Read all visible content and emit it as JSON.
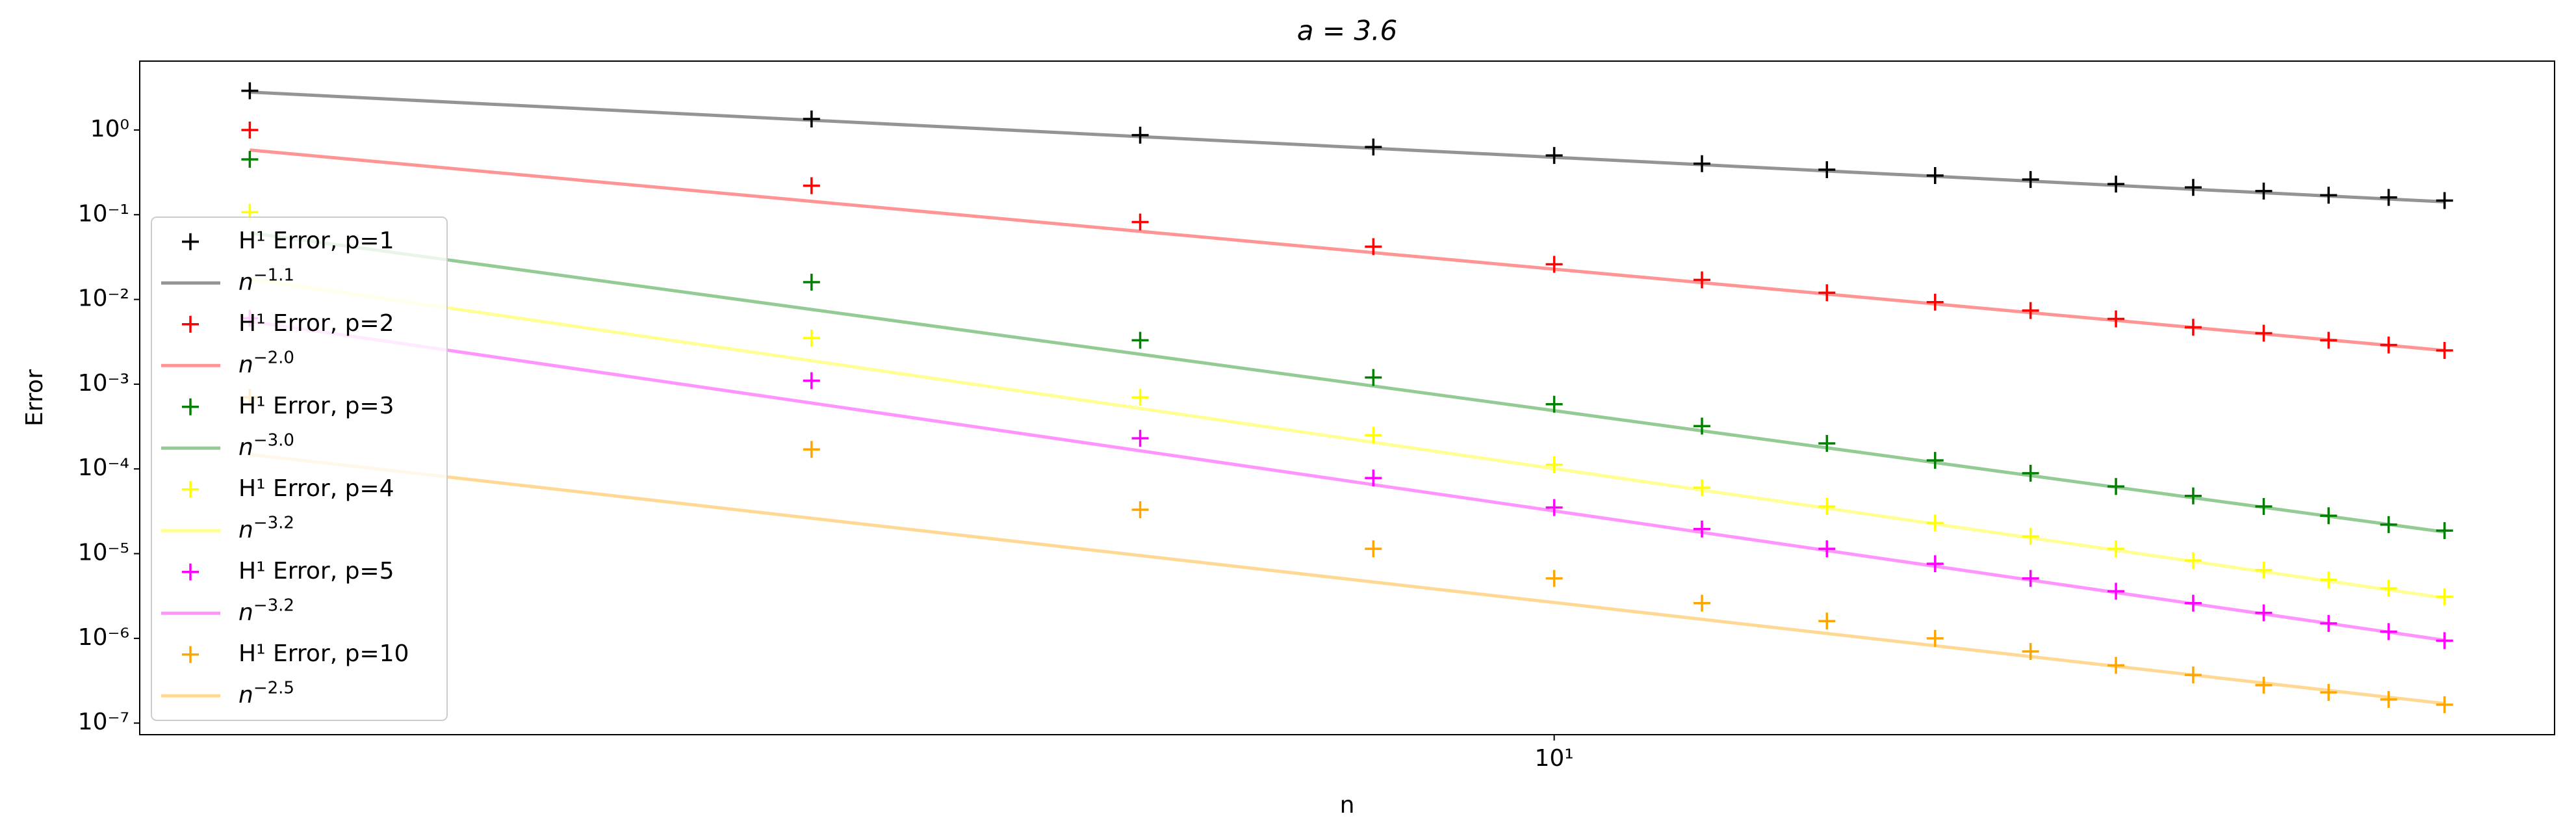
{
  "chart_data": {
    "type": "line",
    "title": "a = 3.6",
    "xlabel": "n",
    "ylabel": "Error",
    "xscale": "log",
    "yscale": "log",
    "xlim": [
      1.746,
      34.36
    ],
    "ylim": [
      7.3e-08,
      6.5
    ],
    "xticks": [
      {
        "value": 10,
        "label": "10¹"
      }
    ],
    "yticks": [
      {
        "value": 1,
        "label": "10⁰"
      },
      {
        "value": 0.1,
        "label": "10⁻¹"
      },
      {
        "value": 0.01,
        "label": "10⁻²"
      },
      {
        "value": 0.001,
        "label": "10⁻³"
      },
      {
        "value": 0.0001,
        "label": "10⁻⁴"
      },
      {
        "value": 1e-05,
        "label": "10⁻⁵"
      },
      {
        "value": 1e-06,
        "label": "10⁻⁶"
      },
      {
        "value": 1e-07,
        "label": "10⁻⁷"
      }
    ],
    "legend": "lower left",
    "series": [
      {
        "name": "H¹ Error, p=1",
        "style": "marker",
        "color": "#000000",
        "x": [
          2,
          4,
          6,
          8,
          10,
          12,
          14,
          16,
          18,
          20,
          22,
          24,
          26,
          28,
          30
        ],
        "values": [
          2.9,
          1.35,
          0.87,
          0.63,
          0.5,
          0.4,
          0.34,
          0.29,
          0.26,
          0.23,
          0.21,
          0.19,
          0.17,
          0.16,
          0.147
        ]
      },
      {
        "name": "n^−1.1",
        "style": "line",
        "color": "#000000",
        "x": [
          2,
          30
        ],
        "values": [
          2.8,
          0.142
        ]
      },
      {
        "name": "H¹ Error, p=2",
        "style": "marker",
        "color": "#ff0000",
        "x": [
          2,
          4,
          6,
          8,
          10,
          12,
          14,
          16,
          18,
          20,
          22,
          24,
          26,
          28,
          30
        ],
        "values": [
          1.0,
          0.22,
          0.082,
          0.042,
          0.026,
          0.017,
          0.012,
          0.0093,
          0.0074,
          0.0059,
          0.0047,
          0.004,
          0.0033,
          0.0029,
          0.0025
        ]
      },
      {
        "name": "n^−2.0",
        "style": "line",
        "color": "#ff0000",
        "x": [
          2,
          30
        ],
        "values": [
          0.58,
          0.0025
        ]
      },
      {
        "name": "H¹ Error, p=3",
        "style": "marker",
        "color": "#008000",
        "x": [
          2,
          4,
          6,
          8,
          10,
          12,
          14,
          16,
          18,
          20,
          22,
          24,
          26,
          28,
          30
        ],
        "values": [
          0.45,
          0.016,
          0.0033,
          0.0012,
          0.00058,
          0.00032,
          0.0002,
          0.000126,
          8.9e-05,
          6.2e-05,
          4.8e-05,
          3.6e-05,
          2.8e-05,
          2.2e-05,
          1.87e-05
        ]
      },
      {
        "name": "n^−3.0",
        "style": "line",
        "color": "#008000",
        "x": [
          2,
          30
        ],
        "values": [
          0.061,
          1.8e-05
        ]
      },
      {
        "name": "H¹ Error, p=4",
        "style": "marker",
        "color": "#ffff00",
        "x": [
          2,
          4,
          6,
          8,
          10,
          12,
          14,
          16,
          18,
          20,
          22,
          24,
          26,
          28,
          30
        ],
        "values": [
          0.107,
          0.0035,
          0.0007,
          0.00025,
          0.000112,
          6e-05,
          3.6e-05,
          2.3e-05,
          1.6e-05,
          1.14e-05,
          8.3e-06,
          6.4e-06,
          4.9e-06,
          3.9e-06,
          3.1e-06
        ]
      },
      {
        "name": "n^−3.2",
        "style": "line",
        "color": "#ffff00",
        "x": [
          2,
          30
        ],
        "values": [
          0.0174,
          3e-06
        ]
      },
      {
        "name": "H¹ Error, p=5",
        "style": "marker",
        "color": "#ff00ff",
        "x": [
          2,
          4,
          6,
          8,
          10,
          12,
          14,
          16,
          18,
          20,
          22,
          24,
          26,
          28,
          30
        ],
        "values": [
          0.006,
          0.0011,
          0.00023,
          7.8e-05,
          3.5e-05,
          1.95e-05,
          1.14e-05,
          7.6e-06,
          5.1e-06,
          3.6e-06,
          2.6e-06,
          2e-06,
          1.5e-06,
          1.2e-06,
          9.4e-07
        ]
      },
      {
        "name": "n^−3.2",
        "style": "line",
        "color": "#ff00ff",
        "x": [
          2,
          30
        ],
        "values": [
          0.0055,
          9.5e-07
        ]
      },
      {
        "name": "H¹ Error, p=10",
        "style": "marker",
        "color": "#ffa500",
        "x": [
          2,
          4,
          6,
          8,
          10,
          12,
          14,
          16,
          18,
          20,
          22,
          24,
          26,
          28,
          30
        ],
        "values": [
          0.0007,
          0.00017,
          3.3e-05,
          1.14e-05,
          5.1e-06,
          2.6e-06,
          1.6e-06,
          1e-06,
          7e-07,
          4.8e-07,
          3.7e-07,
          2.8e-07,
          2.3e-07,
          1.9e-07,
          1.65e-07
        ]
      },
      {
        "name": "n^−2.5",
        "style": "line",
        "color": "#ffa500",
        "x": [
          2,
          30
        ],
        "values": [
          0.000148,
          1.7e-07
        ]
      }
    ]
  }
}
